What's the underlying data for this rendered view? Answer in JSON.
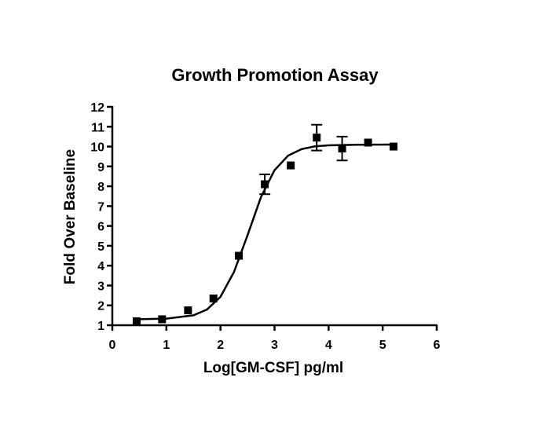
{
  "chart_data": {
    "type": "scatter",
    "title": "Growth Promotion  Assay",
    "xlabel": "Log[GM-CSF] pg/ml",
    "ylabel": "Fold  Over Baseline",
    "xlim": [
      0,
      6
    ],
    "xticks": [
      0,
      1,
      2,
      3,
      4,
      5,
      6
    ],
    "ylim": [
      1,
      12
    ],
    "yticks": [
      1,
      2,
      3,
      4,
      5,
      6,
      7,
      8,
      9,
      10,
      11,
      12
    ],
    "grid": false,
    "series": [
      {
        "marker": "square",
        "color": "#000000",
        "x": [
          0.45,
          0.92,
          1.4,
          1.87,
          2.34,
          2.82,
          3.3,
          3.78,
          4.25,
          4.73,
          5.2
        ],
        "values": [
          1.2,
          1.3,
          1.75,
          2.35,
          4.5,
          8.1,
          9.05,
          10.45,
          9.9,
          10.2,
          10.0
        ],
        "errors": [
          null,
          null,
          null,
          null,
          null,
          0.5,
          null,
          0.65,
          0.6,
          null,
          null
        ]
      },
      {
        "marker": "line",
        "color": "#000000",
        "x": [
          0.45,
          1.0,
          1.5,
          1.75,
          2.0,
          2.25,
          2.5,
          2.75,
          3.0,
          3.25,
          3.5,
          3.75,
          4.0,
          4.5,
          5.2
        ],
        "values": [
          1.3,
          1.33,
          1.5,
          1.79,
          2.43,
          3.68,
          5.53,
          7.46,
          8.81,
          9.54,
          9.87,
          10.01,
          10.06,
          10.09,
          10.1
        ]
      }
    ]
  }
}
